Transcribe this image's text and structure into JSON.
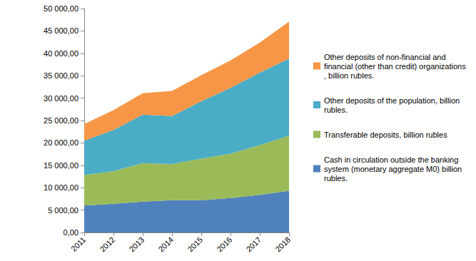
{
  "chart_data": {
    "type": "area",
    "stacked": true,
    "grid": false,
    "legend": "right",
    "categories": [
      "2011",
      "2012",
      "2013",
      "2014",
      "2015",
      "2016",
      "2017",
      "2018"
    ],
    "series": [
      {
        "name": "Cash in circulation outside the banking system (monetary aggregate M0) billion rubles.",
        "color": "#4f81bd",
        "values": [
          6000,
          6400,
          6900,
          7200,
          7200,
          7700,
          8400,
          9300
        ]
      },
      {
        "name": "Transferable deposits, billion rubles",
        "color": "#9bbb59",
        "values": [
          6800,
          7300,
          8600,
          8100,
          9300,
          9900,
          11100,
          12300
        ]
      },
      {
        "name": "Other deposits of the population, billion rubles.",
        "color": "#4bacc6",
        "values": [
          7700,
          9200,
          10800,
          10700,
          12800,
          14700,
          16200,
          17200
        ]
      },
      {
        "name": "Other deposits of non-financial and financial (other than credit) organizations, billion rubles.",
        "color": "#f79646",
        "values": [
          3700,
          4400,
          4800,
          5600,
          5800,
          6100,
          6700,
          8300
        ]
      }
    ],
    "ylim": [
      0,
      50000
    ],
    "yticks": [
      {
        "value": 0,
        "label": "0,00"
      },
      {
        "value": 5000,
        "label": "5 000,00"
      },
      {
        "value": 10000,
        "label": "10 000,00"
      },
      {
        "value": 15000,
        "label": "15 000,00"
      },
      {
        "value": 20000,
        "label": "20 000,00"
      },
      {
        "value": 25000,
        "label": "25 000,00"
      },
      {
        "value": 30000,
        "label": "30 000,00"
      },
      {
        "value": 35000,
        "label": "35 000,00"
      },
      {
        "value": 40000,
        "label": "40 000,00"
      },
      {
        "value": 45000,
        "label": "45 000,00"
      },
      {
        "value": 50000,
        "label": "50 000,00"
      }
    ]
  }
}
